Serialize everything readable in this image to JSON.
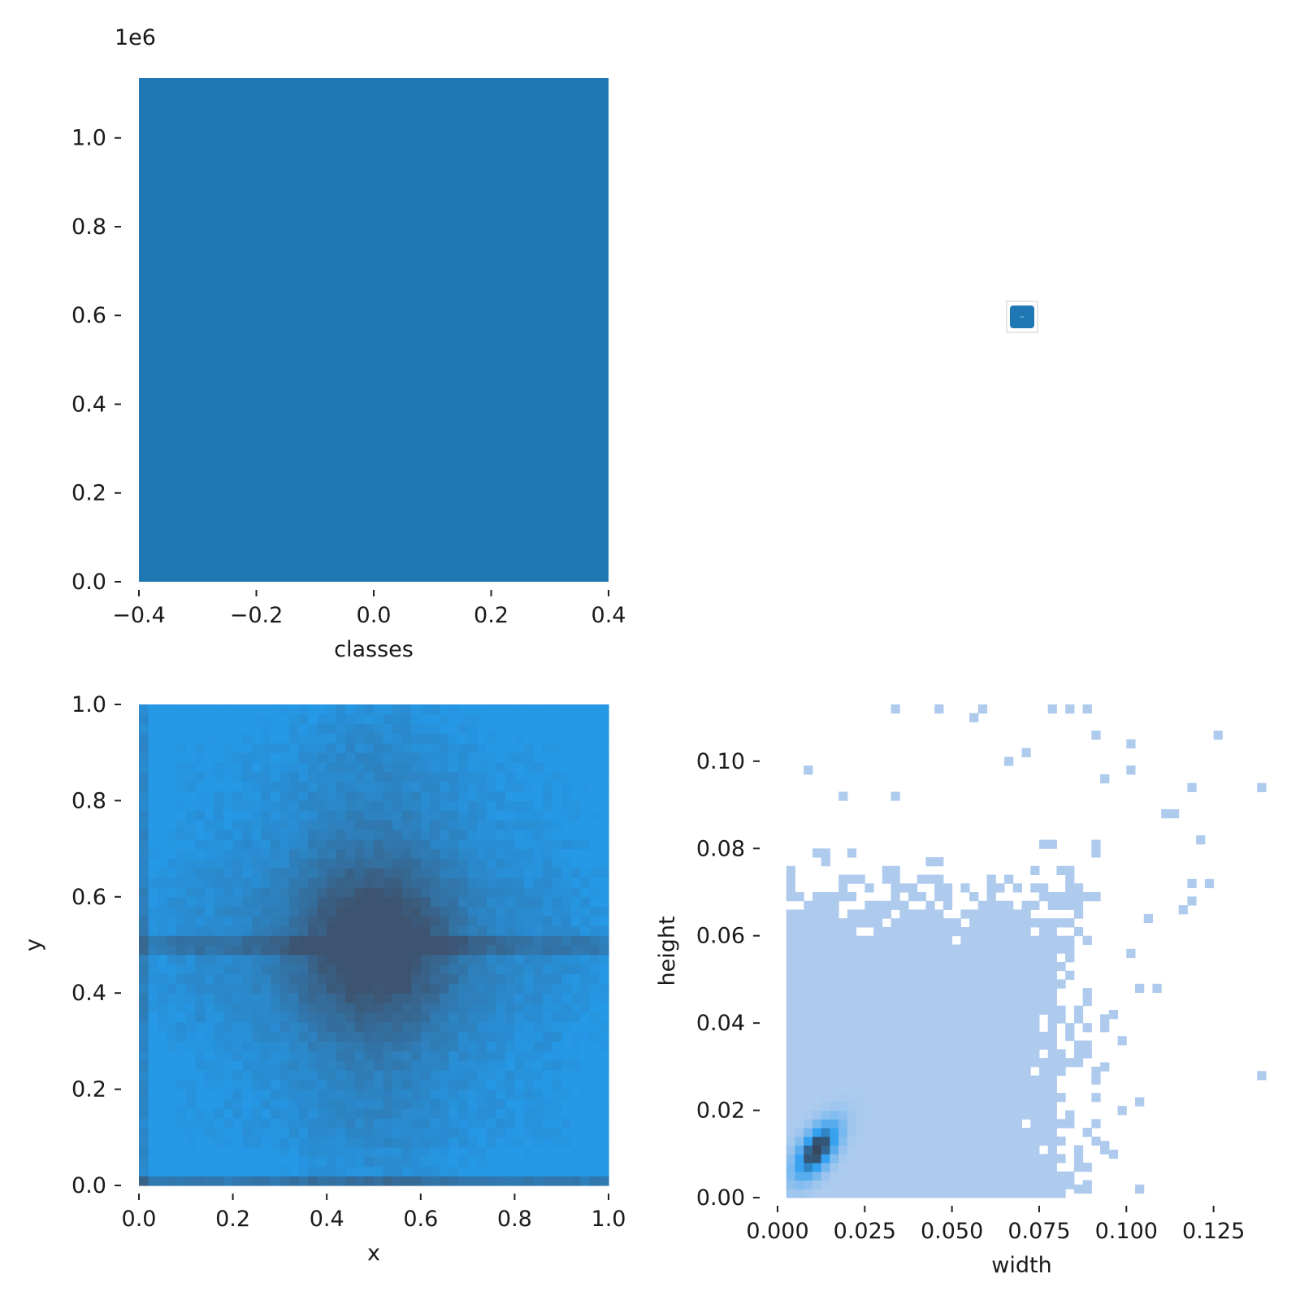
{
  "chart_data": [
    {
      "type": "bar",
      "panel": "classes-histogram",
      "xlabel": "classes",
      "ylabel": "",
      "offset_label": "1e6",
      "xlim": [
        -0.4,
        0.4
      ],
      "ylim": [
        0,
        1.135
      ],
      "x_ticks": [
        "−0.4",
        "−0.2",
        "0.0",
        "0.2",
        "0.4"
      ],
      "y_ticks": [
        "0.0",
        "0.2",
        "0.4",
        "0.6",
        "0.8",
        "1.0"
      ],
      "categories": [
        "0"
      ],
      "values": [
        1.135
      ],
      "color": "#1f77b4"
    },
    {
      "type": "scatter",
      "panel": "empty-panel",
      "note_points": [
        {
          "x": 0,
          "y": 0
        }
      ],
      "color": "#1f77b4"
    },
    {
      "type": "heatmap",
      "panel": "xy-histogram",
      "xlabel": "x",
      "ylabel": "y",
      "xlim": [
        0,
        1
      ],
      "ylim": [
        0,
        1
      ],
      "x_ticks": [
        "0.0",
        "0.2",
        "0.4",
        "0.6",
        "0.8",
        "1.0"
      ],
      "y_ticks": [
        "0.0",
        "0.2",
        "0.4",
        "0.6",
        "0.8",
        "1.0"
      ],
      "bins": 50,
      "low_color": "#2598e6",
      "high_color": "#3d5470",
      "density_peak": {
        "x": 0.5,
        "y": 0.5
      }
    },
    {
      "type": "heatmap",
      "panel": "width-height-histogram",
      "xlabel": "width",
      "ylabel": "height",
      "xlim": [
        0,
        0.14
      ],
      "ylim": [
        0,
        0.113
      ],
      "x_ticks": [
        "0.000",
        "0.025",
        "0.050",
        "0.075",
        "0.100",
        "0.125"
      ],
      "y_ticks": [
        "0.00",
        "0.02",
        "0.04",
        "0.06",
        "0.08",
        "0.10"
      ],
      "bin_width": 0.0025,
      "bin_height": 0.002,
      "main_region": {
        "width": [
          0.0025,
          0.08
        ],
        "height": [
          0.0,
          0.065
        ]
      },
      "peak": {
        "width": 0.01,
        "height": 0.01
      },
      "light_color": "#aecbee",
      "mid_color": "#2a9df0",
      "dark_color": "#36475e",
      "outliers": [
        {
          "width": 0.0325,
          "height": 0.111
        },
        {
          "width": 0.045,
          "height": 0.111
        },
        {
          "width": 0.055,
          "height": 0.109
        },
        {
          "width": 0.0575,
          "height": 0.111
        },
        {
          "width": 0.0775,
          "height": 0.111
        },
        {
          "width": 0.0825,
          "height": 0.111
        },
        {
          "width": 0.0875,
          "height": 0.111
        },
        {
          "width": 0.09,
          "height": 0.105
        },
        {
          "width": 0.1,
          "height": 0.103
        },
        {
          "width": 0.125,
          "height": 0.105
        },
        {
          "width": 0.0075,
          "height": 0.097
        },
        {
          "width": 0.0175,
          "height": 0.091
        },
        {
          "width": 0.0325,
          "height": 0.091
        },
        {
          "width": 0.065,
          "height": 0.099
        },
        {
          "width": 0.07,
          "height": 0.101
        },
        {
          "width": 0.0925,
          "height": 0.095
        },
        {
          "width": 0.1,
          "height": 0.097
        },
        {
          "width": 0.1175,
          "height": 0.093
        },
        {
          "width": 0.1375,
          "height": 0.093
        },
        {
          "width": 0.11,
          "height": 0.087
        },
        {
          "width": 0.1125,
          "height": 0.087
        },
        {
          "width": 0.12,
          "height": 0.081
        },
        {
          "width": 0.1175,
          "height": 0.071
        },
        {
          "width": 0.1225,
          "height": 0.071
        },
        {
          "width": 0.1175,
          "height": 0.067
        },
        {
          "width": 0.115,
          "height": 0.065
        },
        {
          "width": 0.105,
          "height": 0.063
        },
        {
          "width": 0.1075,
          "height": 0.047
        },
        {
          "width": 0.1025,
          "height": 0.047
        },
        {
          "width": 0.1375,
          "height": 0.027
        },
        {
          "width": 0.1025,
          "height": 0.021
        },
        {
          "width": 0.1025,
          "height": 0.001
        },
        {
          "width": 0.0875,
          "height": 0.001
        },
        {
          "width": 0.085,
          "height": 0.001
        },
        {
          "width": 0.0925,
          "height": 0.011
        },
        {
          "width": 0.095,
          "height": 0.009
        },
        {
          "width": 0.0975,
          "height": 0.019
        },
        {
          "width": 0.0925,
          "height": 0.029
        },
        {
          "width": 0.0975,
          "height": 0.035
        },
        {
          "width": 0.095,
          "height": 0.041
        },
        {
          "width": 0.1,
          "height": 0.055
        }
      ]
    }
  ]
}
